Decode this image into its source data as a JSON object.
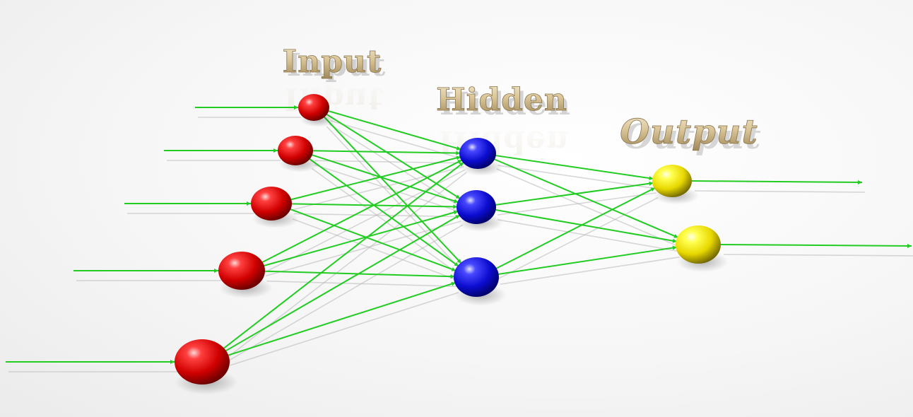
{
  "diagram": {
    "layers": [
      {
        "id": "input",
        "label": "Input",
        "color": "#e01010"
      },
      {
        "id": "hidden",
        "label": "Hidden",
        "color": "#1515e0"
      },
      {
        "id": "output",
        "label": "Output",
        "color": "#f0e020"
      }
    ],
    "connection_color": "#22cc22",
    "shadow_color": "#b8b8b8",
    "neuron_counts": {
      "input": 5,
      "hidden": 3,
      "output": 2
    }
  }
}
